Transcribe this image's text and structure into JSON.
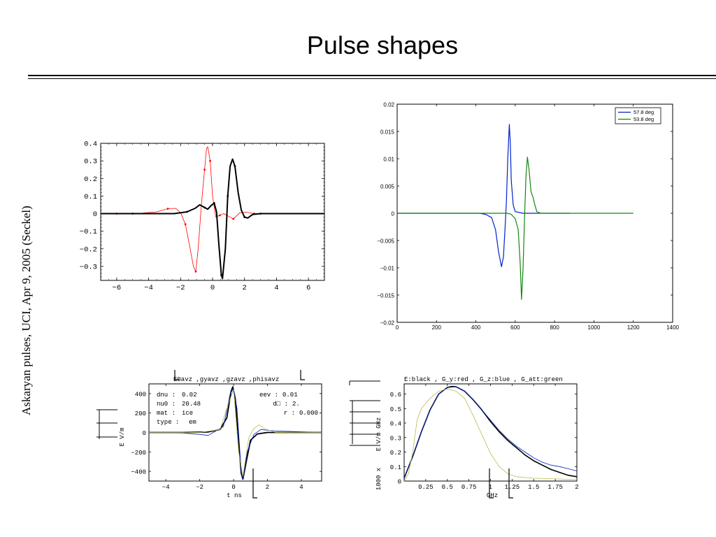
{
  "slide": {
    "title": "Pulse shapes",
    "side_caption": "Askaryan pulses, UCI, Apr 9, 2005 (Seckel)"
  },
  "colors": {
    "black": "#000000",
    "red": "#ff0000",
    "blue": "#0022cc",
    "green": "#118811",
    "olive": "#bbbb55"
  },
  "chart_data": [
    {
      "id": "chart1",
      "type": "line",
      "title": "",
      "xlabel": "",
      "ylabel": "",
      "xlim": [
        -7,
        7
      ],
      "ylim": [
        -0.38,
        0.4
      ],
      "xticks": [
        -6,
        -4,
        -2,
        0,
        2,
        4,
        6
      ],
      "xtick_labels": [
        "−6",
        "−4",
        "−2",
        "0",
        "2",
        "4",
        "6"
      ],
      "yticks": [
        0.4,
        0.3,
        0.2,
        0.1,
        0,
        -0.1,
        -0.2,
        -0.3
      ],
      "ytick_labels": [
        "0.4",
        "0.3",
        "0.2",
        "0.1",
        "0",
        "−0.1",
        "−0.2",
        "−0.3"
      ],
      "series": [
        {
          "color": "red",
          "width": 0.8,
          "markers": true,
          "points": [
            [
              -7,
              0
            ],
            [
              -6,
              0
            ],
            [
              -4.5,
              0.002
            ],
            [
              -3.5,
              0.01
            ],
            [
              -2.8,
              0.028
            ],
            [
              -2.3,
              0.03
            ],
            [
              -2.0,
              0.005
            ],
            [
              -1.7,
              -0.06
            ],
            [
              -1.4,
              -0.2
            ],
            [
              -1.2,
              -0.3
            ],
            [
              -1.05,
              -0.33
            ],
            [
              -0.9,
              -0.2
            ],
            [
              -0.7,
              0.05
            ],
            [
              -0.5,
              0.25
            ],
            [
              -0.38,
              0.37
            ],
            [
              -0.3,
              0.38
            ],
            [
              -0.15,
              0.3
            ],
            [
              0.0,
              0.1
            ],
            [
              0.2,
              -0.02
            ],
            [
              0.45,
              -0.01
            ],
            [
              0.7,
              0.0
            ],
            [
              1.0,
              -0.015
            ],
            [
              1.3,
              -0.03
            ],
            [
              1.7,
              0.005
            ],
            [
              2.1,
              0.008
            ],
            [
              2.6,
              0
            ],
            [
              3.5,
              0
            ],
            [
              7,
              0
            ]
          ]
        },
        {
          "color": "black",
          "width": 2,
          "markers": true,
          "points": [
            [
              -7,
              0
            ],
            [
              -5,
              0
            ],
            [
              -3.5,
              0
            ],
            [
              -2.4,
              0
            ],
            [
              -1.6,
              0.01
            ],
            [
              -1.1,
              0.03
            ],
            [
              -0.8,
              0.05
            ],
            [
              -0.5,
              0.035
            ],
            [
              -0.3,
              0.025
            ],
            [
              -0.1,
              0.045
            ],
            [
              0.1,
              0.06
            ],
            [
              0.25,
              0.01
            ],
            [
              0.4,
              -0.18
            ],
            [
              0.55,
              -0.35
            ],
            [
              0.62,
              -0.37
            ],
            [
              0.8,
              -0.2
            ],
            [
              0.95,
              0.1
            ],
            [
              1.1,
              0.27
            ],
            [
              1.25,
              0.31
            ],
            [
              1.4,
              0.27
            ],
            [
              1.6,
              0.12
            ],
            [
              1.8,
              0.02
            ],
            [
              2.0,
              -0.02
            ],
            [
              2.2,
              -0.025
            ],
            [
              2.5,
              -0.005
            ],
            [
              3.0,
              0
            ],
            [
              7,
              0
            ]
          ]
        }
      ]
    },
    {
      "id": "chart2",
      "type": "line",
      "title": "",
      "xlabel": "",
      "ylabel": "",
      "xlim": [
        0,
        1400
      ],
      "ylim": [
        -0.02,
        0.02
      ],
      "xticks": [
        0,
        200,
        400,
        600,
        800,
        1000,
        1200,
        1400
      ],
      "xtick_labels": [
        "0",
        "200",
        "400",
        "600",
        "800",
        "1000",
        "1200",
        "1400"
      ],
      "yticks": [
        0.02,
        0.015,
        0.01,
        0.005,
        0,
        -0.005,
        -0.01,
        -0.015,
        -0.02
      ],
      "ytick_labels": [
        "0.02",
        "0.015",
        "0.01",
        "0.005",
        "0",
        "−0.005",
        "−0.01",
        "−0.015",
        "−0.02"
      ],
      "legend": {
        "position": "top-right",
        "entries": [
          {
            "name": "57.8 deg",
            "color": "blue"
          },
          {
            "name": "53.8 deg",
            "color": "green"
          }
        ]
      },
      "series": [
        {
          "name": "57.8 deg",
          "color": "blue",
          "width": 1.2,
          "points": [
            [
              0,
              0
            ],
            [
              420,
              0
            ],
            [
              450,
              -0.0002
            ],
            [
              480,
              -0.0008
            ],
            [
              500,
              -0.003
            ],
            [
              515,
              -0.007
            ],
            [
              530,
              -0.0098
            ],
            [
              540,
              -0.008
            ],
            [
              548,
              -0.003
            ],
            [
              555,
              0.002
            ],
            [
              562,
              0.01
            ],
            [
              570,
              0.0163
            ],
            [
              575,
              0.013
            ],
            [
              580,
              0.006
            ],
            [
              590,
              0.0015
            ],
            [
              600,
              0.0003
            ],
            [
              640,
              0
            ],
            [
              880,
              0
            ]
          ]
        },
        {
          "name": "53.8 deg",
          "color": "green",
          "width": 1.2,
          "points": [
            [
              0,
              0
            ],
            [
              560,
              0
            ],
            [
              580,
              -0.0002
            ],
            [
              600,
              -0.001
            ],
            [
              615,
              -0.003
            ],
            [
              625,
              -0.009
            ],
            [
              632,
              -0.0158
            ],
            [
              640,
              -0.01
            ],
            [
              648,
              0
            ],
            [
              655,
              0.007
            ],
            [
              662,
              0.0103
            ],
            [
              670,
              0.008
            ],
            [
              680,
              0.004
            ],
            [
              690,
              0.003
            ],
            [
              700,
              0.0015
            ],
            [
              710,
              0.0003
            ],
            [
              730,
              0
            ],
            [
              1200,
              0
            ]
          ]
        }
      ]
    },
    {
      "id": "chart3",
      "type": "line",
      "title": "E0avz ,gyavz ,gzavz ,phisavz",
      "xlabel": "t ns",
      "ylabel": "E V/m",
      "xlim": [
        -5,
        5.2
      ],
      "ylim": [
        -500,
        500
      ],
      "xticks": [
        -4,
        -2,
        0,
        2,
        4
      ],
      "xtick_labels": [
        "−4",
        "−2",
        "0",
        "2",
        "4"
      ],
      "yticks": [
        400,
        200,
        0,
        -200,
        -400
      ],
      "ytick_labels": [
        "400",
        "200",
        "0",
        "−200",
        "−400"
      ],
      "annotations": [
        {
          "label": "dnu :",
          "value": "0.02"
        },
        {
          "label": "nu0 :",
          "value": "20.48"
        },
        {
          "label": "mat :",
          "value": "ice"
        },
        {
          "label": "type :",
          "value": "em"
        },
        {
          "label": "eev :",
          "value": "0.01"
        },
        {
          "label": "d□ :",
          "value": "2."
        },
        {
          "label": "r :",
          "value": "0.000"
        }
      ],
      "series": [
        {
          "color": "black",
          "width": 1.8,
          "points": [
            [
              -5,
              0
            ],
            [
              -3,
              0
            ],
            [
              -1.5,
              5
            ],
            [
              -0.8,
              30
            ],
            [
              -0.4,
              150
            ],
            [
              -0.15,
              420
            ],
            [
              -0.05,
              470
            ],
            [
              0.1,
              350
            ],
            [
              0.3,
              -100
            ],
            [
              0.45,
              -420
            ],
            [
              0.55,
              -480
            ],
            [
              0.75,
              -300
            ],
            [
              1.0,
              -80
            ],
            [
              1.4,
              -15
            ],
            [
              2,
              0
            ],
            [
              5.2,
              0
            ]
          ]
        },
        {
          "color": "blue",
          "width": 0.8,
          "points": [
            [
              -5,
              0
            ],
            [
              -3,
              -5
            ],
            [
              -2,
              -20
            ],
            [
              -1.5,
              -30
            ],
            [
              -1.2,
              0
            ],
            [
              -0.6,
              60
            ],
            [
              -0.2,
              400
            ],
            [
              0,
              450
            ],
            [
              0.2,
              250
            ],
            [
              0.45,
              -400
            ],
            [
              0.55,
              -470
            ],
            [
              0.8,
              -200
            ],
            [
              1.2,
              -20
            ],
            [
              1.6,
              30
            ],
            [
              2.5,
              15
            ],
            [
              3.5,
              10
            ],
            [
              5.2,
              0
            ]
          ]
        },
        {
          "color": "olive",
          "width": 0.8,
          "points": [
            [
              -5,
              0
            ],
            [
              -2,
              0
            ],
            [
              -0.8,
              30
            ],
            [
              -0.3,
              300
            ],
            [
              0,
              440
            ],
            [
              0.3,
              -200
            ],
            [
              0.55,
              -450
            ],
            [
              0.9,
              -50
            ],
            [
              1.2,
              40
            ],
            [
              1.5,
              80
            ],
            [
              1.8,
              40
            ],
            [
              2.5,
              0
            ],
            [
              5.2,
              0
            ]
          ]
        }
      ]
    },
    {
      "id": "chart4",
      "type": "line",
      "title": "E:black ,  G_y:red ,  G_z:blue ,  G_att:green",
      "xlabel": "GHz",
      "ylabel": "E V/m GHz",
      "ylabel_extra": "1000 x",
      "xlim": [
        0,
        2
      ],
      "ylim": [
        0,
        0.67
      ],
      "xticks": [
        0.25,
        0.5,
        0.75,
        1,
        1.25,
        1.5,
        1.75,
        2
      ],
      "xtick_labels": [
        "0.25",
        "0.5",
        "0.75",
        "1",
        "1.25",
        "1.5",
        "1.75",
        "2"
      ],
      "yticks": [
        0,
        0.1,
        0.2,
        0.3,
        0.4,
        0.5,
        0.6
      ],
      "ytick_labels": [
        "0",
        "0.1",
        "0.2",
        "0.3",
        "0.4",
        "0.5",
        "0.6"
      ],
      "series": [
        {
          "color": "black",
          "width": 1.6,
          "points": [
            [
              0,
              0.02
            ],
            [
              0.1,
              0.17
            ],
            [
              0.2,
              0.34
            ],
            [
              0.3,
              0.49
            ],
            [
              0.4,
              0.6
            ],
            [
              0.5,
              0.645
            ],
            [
              0.55,
              0.652
            ],
            [
              0.6,
              0.65
            ],
            [
              0.7,
              0.62
            ],
            [
              0.8,
              0.56
            ],
            [
              0.9,
              0.49
            ],
            [
              1.0,
              0.41
            ],
            [
              1.1,
              0.34
            ],
            [
              1.2,
              0.28
            ],
            [
              1.3,
              0.23
            ],
            [
              1.4,
              0.18
            ],
            [
              1.5,
              0.14
            ],
            [
              1.6,
              0.11
            ],
            [
              1.7,
              0.08
            ],
            [
              1.8,
              0.06
            ],
            [
              1.9,
              0.04
            ],
            [
              2.0,
              0.03
            ]
          ]
        },
        {
          "color": "blue",
          "width": 0.8,
          "points": [
            [
              0,
              0.02
            ],
            [
              0.1,
              0.17
            ],
            [
              0.2,
              0.34
            ],
            [
              0.3,
              0.49
            ],
            [
              0.4,
              0.6
            ],
            [
              0.5,
              0.645
            ],
            [
              0.6,
              0.65
            ],
            [
              0.7,
              0.62
            ],
            [
              0.8,
              0.56
            ],
            [
              0.9,
              0.49
            ],
            [
              1.0,
              0.42
            ],
            [
              1.1,
              0.35
            ],
            [
              1.2,
              0.29
            ],
            [
              1.3,
              0.24
            ],
            [
              1.4,
              0.2
            ],
            [
              1.5,
              0.16
            ],
            [
              1.6,
              0.13
            ],
            [
              1.7,
              0.11
            ],
            [
              1.8,
              0.1
            ],
            [
              1.9,
              0.085
            ],
            [
              2.0,
              0.07
            ]
          ]
        },
        {
          "color": "olive",
          "width": 0.8,
          "points": [
            [
              0,
              0
            ],
            [
              0.05,
              0.05
            ],
            [
              0.1,
              0.2
            ],
            [
              0.15,
              0.42
            ],
            [
              0.2,
              0.5
            ],
            [
              0.3,
              0.57
            ],
            [
              0.4,
              0.62
            ],
            [
              0.5,
              0.635
            ],
            [
              0.6,
              0.62
            ],
            [
              0.7,
              0.57
            ],
            [
              0.8,
              0.45
            ],
            [
              0.9,
              0.32
            ],
            [
              1.0,
              0.19
            ],
            [
              1.1,
              0.1
            ],
            [
              1.2,
              0.05
            ],
            [
              1.3,
              0.03
            ],
            [
              1.5,
              0.02
            ],
            [
              1.75,
              0.015
            ],
            [
              2.0,
              0.01
            ]
          ]
        }
      ]
    }
  ]
}
